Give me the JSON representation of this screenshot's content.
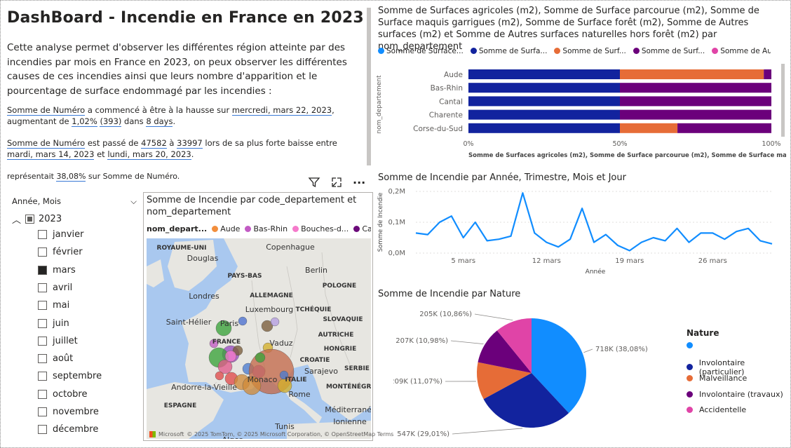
{
  "title": "DashBoard - Incendie en France en 2023",
  "intro": "Cette analyse permet d'observer les différentes région atteinte par des incendies par mois en France en 2023, on peux observer les différentes causes de ces incendies ainsi que leurs nombre d'apparition et le pourcentage de surface endommagé par les incendies :",
  "insight1": {
    "p1": "Somme de Numéro",
    "p2": " a commencé à être à la hausse sur ",
    "p3": "mercredi, mars 22, 2023",
    "p4": ", augmentant de ",
    "p5": "1,02%",
    "p6": " ",
    "p7": "(393)",
    "p8": " dans ",
    "p9": "8 days",
    "p10": "."
  },
  "insight2": {
    "p1": "Somme de Numéro",
    "p2": " est passé de ",
    "p3": "47582",
    "p4": " à ",
    "p5": "33997",
    "p6": " lors de sa plus forte baisse entre ",
    "p7": "mardi, mars 14, 2023",
    "p8": " et ",
    "p9": "lundi, mars 20, 2023",
    "p10": "."
  },
  "insight3": {
    "p1": "représentait ",
    "p2": "38,08%",
    "p3": " sur Somme de Numéro."
  },
  "slicer": {
    "header": "Année, Mois",
    "year": "2023",
    "months": [
      {
        "label": "janvier",
        "checked": false
      },
      {
        "label": "février",
        "checked": false
      },
      {
        "label": "mars",
        "checked": true
      },
      {
        "label": "avril",
        "checked": false
      },
      {
        "label": "mai",
        "checked": false
      },
      {
        "label": "juin",
        "checked": false
      },
      {
        "label": "juillet",
        "checked": false
      },
      {
        "label": "août",
        "checked": false
      },
      {
        "label": "septembre",
        "checked": false
      },
      {
        "label": "octobre",
        "checked": false
      },
      {
        "label": "novembre",
        "checked": false
      },
      {
        "label": "décembre",
        "checked": false
      }
    ]
  },
  "map": {
    "title": "Somme de Incendie par code_departement et nom_departement",
    "legend_title": "nom_depart...",
    "legend": [
      {
        "label": "Aude",
        "color": "#F28E3C"
      },
      {
        "label": "Bas-Rhin",
        "color": "#C25BC4"
      },
      {
        "label": "Bouches-d...",
        "color": "#F57ACB"
      },
      {
        "label": "Cantal",
        "color": "#6B0A7A"
      }
    ],
    "place_labels": [
      "ROYAUME-UNI",
      "Copenhague",
      "Douglas",
      "Berlin",
      "PAYS-BAS",
      "POLOGNE",
      "Londres",
      "ALLEMAGNE",
      "Luxembourg",
      "TCHÉQUIE",
      "Saint-Hélier",
      "Paris",
      "SLOVAQUIE",
      "FRANCE",
      "Vaduz",
      "AUTRICHE",
      "HONGRIE",
      "CROATIE",
      "Sarajevo",
      "SERBIE",
      "Monaco",
      "Andorre-la-Vieille",
      "ITALIE",
      "MONTÉNÉGRO",
      "ESPAGNE",
      "Rome",
      "Tunis",
      "Alger",
      "Méditerranée",
      "Ionienne"
    ],
    "attribution": "© 2025 TomTom, © 2025 Microsoft Corporation, © OpenStreetMap Terms",
    "ms_label": "Microsoft"
  },
  "bar_chart": {
    "title": "Somme de Surfaces agricoles (m2), Somme de Surface parcourue (m2), Somme de Surface maquis garrigues (m2), Somme de Surface forêt (m2), Somme de Autres surfaces (m2) et Somme de Autres surfaces naturelles hors forêt (m2) par nom_departement",
    "xlabel": "Somme de Surfaces agricoles (m2), Somme de Surface parcourue (m2), Somme de Surface maquis gar...",
    "ylabel": "nom_departement"
  },
  "line_chart": {
    "title": "Somme de Incendie par Année, Trimestre, Mois et Jour",
    "ylabel": "Somme de Incendie",
    "xlabel": "Année"
  },
  "pie_chart": {
    "title": "Somme de Incendie par Nature",
    "legend_title": "Nature"
  },
  "chart_data": [
    {
      "type": "bar",
      "orientation": "horizontal-stacked-100",
      "categories": [
        "Aude",
        "Bas-Rhin",
        "Cantal",
        "Charente",
        "Corse-du-Sud"
      ],
      "series": [
        {
          "name": "Somme de Surface...",
          "color": "#118DFF",
          "values": [
            0,
            0,
            0,
            0,
            0
          ]
        },
        {
          "name": "Somme de Surfa...",
          "color": "#12239E",
          "values": [
            50,
            50,
            50,
            50,
            50
          ]
        },
        {
          "name": "Somme de Surf...",
          "color": "#E66C37",
          "values": [
            47.5,
            0,
            0,
            0,
            19
          ]
        },
        {
          "name": "Somme de Surf...",
          "color": "#6B007B",
          "values": [
            2.5,
            50,
            50,
            50,
            31
          ]
        },
        {
          "name": "Somme de Aut...",
          "color": "#E044A7",
          "values": [
            0,
            0,
            0,
            0,
            0
          ]
        },
        {
          "name": "Somme de ...",
          "color": "#744EC2",
          "values": [
            0,
            0,
            0,
            0,
            0
          ]
        }
      ],
      "xticks": [
        "0%",
        "50%",
        "100%"
      ],
      "xlim": [
        0,
        100
      ],
      "legend_position": "top"
    },
    {
      "type": "line",
      "x": [
        "2023-03-01",
        "2023-03-02",
        "2023-03-03",
        "2023-03-04",
        "2023-03-05",
        "2023-03-06",
        "2023-03-07",
        "2023-03-08",
        "2023-03-09",
        "2023-03-10",
        "2023-03-11",
        "2023-03-12",
        "2023-03-13",
        "2023-03-14",
        "2023-03-15",
        "2023-03-16",
        "2023-03-17",
        "2023-03-18",
        "2023-03-19",
        "2023-03-20",
        "2023-03-21",
        "2023-03-22",
        "2023-03-23",
        "2023-03-24",
        "2023-03-25",
        "2023-03-26",
        "2023-03-27",
        "2023-03-28",
        "2023-03-29",
        "2023-03-30",
        "2023-03-31"
      ],
      "y": [
        0.065,
        0.06,
        0.1,
        0.12,
        0.05,
        0.1,
        0.04,
        0.045,
        0.055,
        0.195,
        0.065,
        0.035,
        0.02,
        0.045,
        0.145,
        0.035,
        0.06,
        0.025,
        0.008,
        0.035,
        0.05,
        0.04,
        0.08,
        0.035,
        0.065,
        0.065,
        0.045,
        0.07,
        0.08,
        0.04,
        0.03
      ],
      "series_name": "Somme de Incendie",
      "color": "#118DFF",
      "yticks": [
        "0,0M",
        "0,1M",
        "0,2M"
      ],
      "xticks": [
        "5 mars",
        "12 mars",
        "19 mars",
        "26 mars"
      ],
      "ylim": [
        0,
        0.2
      ],
      "y_unit": "M"
    },
    {
      "type": "pie",
      "slices": [
        {
          "label": "",
          "value": 718,
          "display": "718K (38,08%)",
          "color": "#118DFF"
        },
        {
          "label": "Involontaire (particulier)",
          "value": 547,
          "display": "547K (29,01%)",
          "color": "#12239E"
        },
        {
          "label": "Malveillance",
          "value": 209,
          "display": "209K (11,07%)",
          "color": "#E66C37"
        },
        {
          "label": "Involontaire (travaux)",
          "value": 207,
          "display": "207K (10,98%)",
          "color": "#6B007B"
        },
        {
          "label": "Accidentelle",
          "value": 205,
          "display": "205K (10,86%)",
          "color": "#E044A7"
        }
      ],
      "legend_position": "right"
    }
  ]
}
